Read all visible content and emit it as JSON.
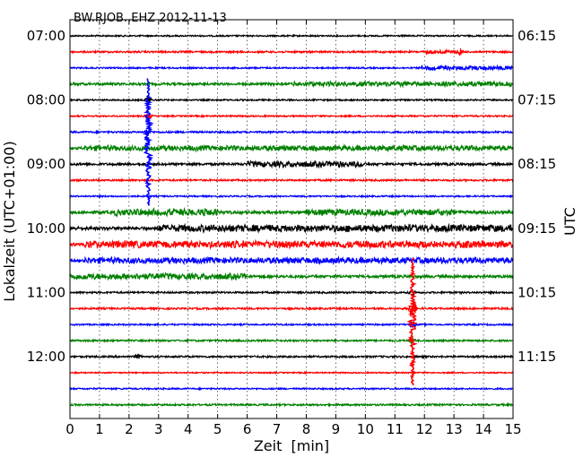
{
  "chart_data": {
    "type": "line",
    "title": "BW.RJOB..EHZ 2012-11-13",
    "xlabel": "Zeit  [min]",
    "ylabel_left": "Lokalzeit (UTC+01:00)",
    "ylabel_right": "UTC",
    "xlim": [
      0,
      15
    ],
    "x_ticks": [
      "0",
      "1",
      "2",
      "3",
      "4",
      "5",
      "6",
      "7",
      "8",
      "9",
      "10",
      "11",
      "12",
      "13",
      "14",
      "15"
    ],
    "y_ticks_left": [
      "07:00",
      "08:00",
      "09:00",
      "10:00",
      "11:00",
      "12:00"
    ],
    "y_ticks_right": [
      "06:15",
      "07:15",
      "08:15",
      "09:15",
      "10:15",
      "11:15"
    ],
    "grid": "vertical dotted",
    "trace_colors": [
      "#000000",
      "#ff0000",
      "#0000ff",
      "#008000"
    ],
    "series": [
      {
        "color": "#000000",
        "noise": 0.25
      },
      {
        "color": "#ff0000",
        "noise": 0.3,
        "bursts": [
          [
            12.0,
            13.3,
            0.45
          ]
        ],
        "spikes": [
          [
            13.2,
            0.9
          ]
        ]
      },
      {
        "color": "#0000ff",
        "noise": 0.25,
        "bursts": [
          [
            11.9,
            15.0,
            0.55
          ]
        ]
      },
      {
        "color": "#008000",
        "noise": 0.4,
        "bursts": [
          [
            7.5,
            15.0,
            0.5
          ]
        ]
      },
      {
        "color": "#000000",
        "noise": 0.25,
        "spikes": [
          [
            2.65,
            1.3
          ]
        ]
      },
      {
        "color": "#ff0000",
        "noise": 0.25,
        "spikes": [
          [
            2.65,
            0.9
          ]
        ]
      },
      {
        "color": "#0000ff",
        "noise": 0.3,
        "spikes": [
          [
            2.65,
            1.5
          ]
        ]
      },
      {
        "color": "#008000",
        "noise": 0.4,
        "bursts": [
          [
            0.5,
            15.0,
            0.6
          ]
        ]
      },
      {
        "color": "#000000",
        "noise": 0.4,
        "bursts": [
          [
            6.0,
            10.0,
            0.7
          ]
        ]
      },
      {
        "color": "#ff0000",
        "noise": 0.3
      },
      {
        "color": "#0000ff",
        "noise": 0.25
      },
      {
        "color": "#008000",
        "noise": 0.5,
        "bursts": [
          [
            1.5,
            5.0,
            0.8
          ],
          [
            8.0,
            13.0,
            0.7
          ]
        ]
      },
      {
        "color": "#000000",
        "noise": 0.55,
        "bursts": [
          [
            3.0,
            15.0,
            0.8
          ]
        ]
      },
      {
        "color": "#ff0000",
        "noise": 0.55,
        "bursts": [
          [
            0.5,
            15.0,
            0.8
          ]
        ]
      },
      {
        "color": "#0000ff",
        "noise": 0.45,
        "bursts": [
          [
            0.5,
            15.0,
            0.7
          ]
        ]
      },
      {
        "color": "#008000",
        "noise": 0.45,
        "bursts": [
          [
            0.0,
            6.0,
            0.7
          ]
        ]
      },
      {
        "color": "#000000",
        "noise": 0.3,
        "spikes": [
          [
            11.6,
            1.0
          ]
        ]
      },
      {
        "color": "#ff0000",
        "noise": 0.3,
        "spikes": [
          [
            11.6,
            4.5
          ]
        ]
      },
      {
        "color": "#0000ff",
        "noise": 0.25,
        "spikes": [
          [
            11.6,
            1.2
          ]
        ]
      },
      {
        "color": "#008000",
        "noise": 0.3,
        "spikes": [
          [
            11.6,
            1.2
          ]
        ]
      },
      {
        "color": "#000000",
        "noise": 0.3,
        "spikes": [
          [
            2.3,
            0.7
          ]
        ]
      },
      {
        "color": "#ff0000",
        "noise": 0.2
      },
      {
        "color": "#0000ff",
        "noise": 0.25
      },
      {
        "color": "#008000",
        "noise": 0.3
      }
    ],
    "spikes_continuous": [
      {
        "color": "#0000ff",
        "x": 2.65,
        "from_trace": 2.7,
        "to_trace": 10.6
      },
      {
        "color": "#ff0000",
        "x": 11.6,
        "from_trace": 13.9,
        "to_trace": 21.8
      }
    ]
  }
}
